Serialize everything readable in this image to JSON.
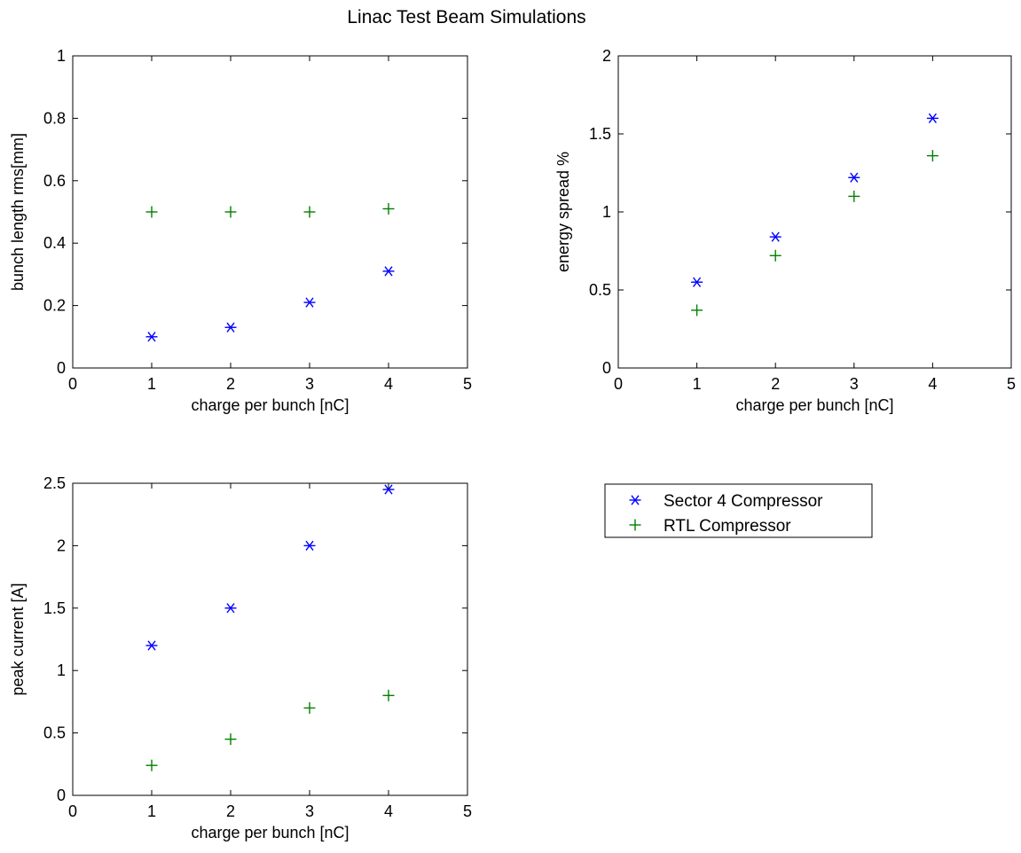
{
  "figure": {
    "title": "Linac Test Beam Simulations"
  },
  "series_styles": [
    {
      "name": "Sector 4 Compressor",
      "marker": "asterisk",
      "color": "#0000ff"
    },
    {
      "name": "RTL Compressor",
      "marker": "plus",
      "color": "#008000"
    }
  ],
  "legend": {
    "placement": "right of bottom-left plot",
    "entries": [
      "Sector 4 Compressor",
      "RTL Compressor"
    ]
  },
  "chart_data": [
    {
      "type": "scatter",
      "xlabel": "charge per bunch [nC]",
      "ylabel": "bunch length rms[mm]",
      "xlim": [
        0,
        5
      ],
      "ylim": [
        0,
        1
      ],
      "xticks": [
        0,
        1,
        2,
        3,
        4,
        5
      ],
      "yticks": [
        0,
        0.2,
        0.4,
        0.6,
        0.8,
        1
      ],
      "ytick_labels": [
        "0",
        "0.2",
        "0.4",
        "0.6",
        "0.8",
        "1"
      ],
      "grid": false,
      "x": [
        1,
        2,
        3,
        4
      ],
      "series": [
        {
          "name": "Sector 4 Compressor",
          "values": [
            0.1,
            0.13,
            0.21,
            0.31
          ]
        },
        {
          "name": "RTL Compressor",
          "values": [
            0.5,
            0.5,
            0.5,
            0.51
          ]
        }
      ]
    },
    {
      "type": "scatter",
      "xlabel": "charge per bunch [nC]",
      "ylabel": "energy spread %",
      "xlim": [
        0,
        5
      ],
      "ylim": [
        0,
        2
      ],
      "xticks": [
        0,
        1,
        2,
        3,
        4,
        5
      ],
      "yticks": [
        0,
        0.5,
        1,
        1.5,
        2
      ],
      "ytick_labels": [
        "0",
        "0.5",
        "1",
        "1.5",
        "2"
      ],
      "grid": false,
      "x": [
        1,
        2,
        3,
        4
      ],
      "series": [
        {
          "name": "Sector 4 Compressor",
          "values": [
            0.55,
            0.84,
            1.22,
            1.6
          ]
        },
        {
          "name": "RTL Compressor",
          "values": [
            0.37,
            0.72,
            1.1,
            1.36
          ]
        }
      ]
    },
    {
      "type": "scatter",
      "xlabel": "charge per bunch [nC]",
      "ylabel": "peak current [A]",
      "xlim": [
        0,
        5
      ],
      "ylim": [
        0,
        2.5
      ],
      "xticks": [
        0,
        1,
        2,
        3,
        4,
        5
      ],
      "yticks": [
        0,
        0.5,
        1,
        1.5,
        2,
        2.5
      ],
      "ytick_labels": [
        "0",
        "0.5",
        "1",
        "1.5",
        "2",
        "2.5"
      ],
      "grid": false,
      "x": [
        1,
        2,
        3,
        4
      ],
      "series": [
        {
          "name": "Sector 4 Compressor",
          "values": [
            1.2,
            1.5,
            2.0,
            2.45
          ]
        },
        {
          "name": "RTL Compressor",
          "values": [
            0.24,
            0.45,
            0.7,
            0.8
          ]
        }
      ]
    }
  ]
}
